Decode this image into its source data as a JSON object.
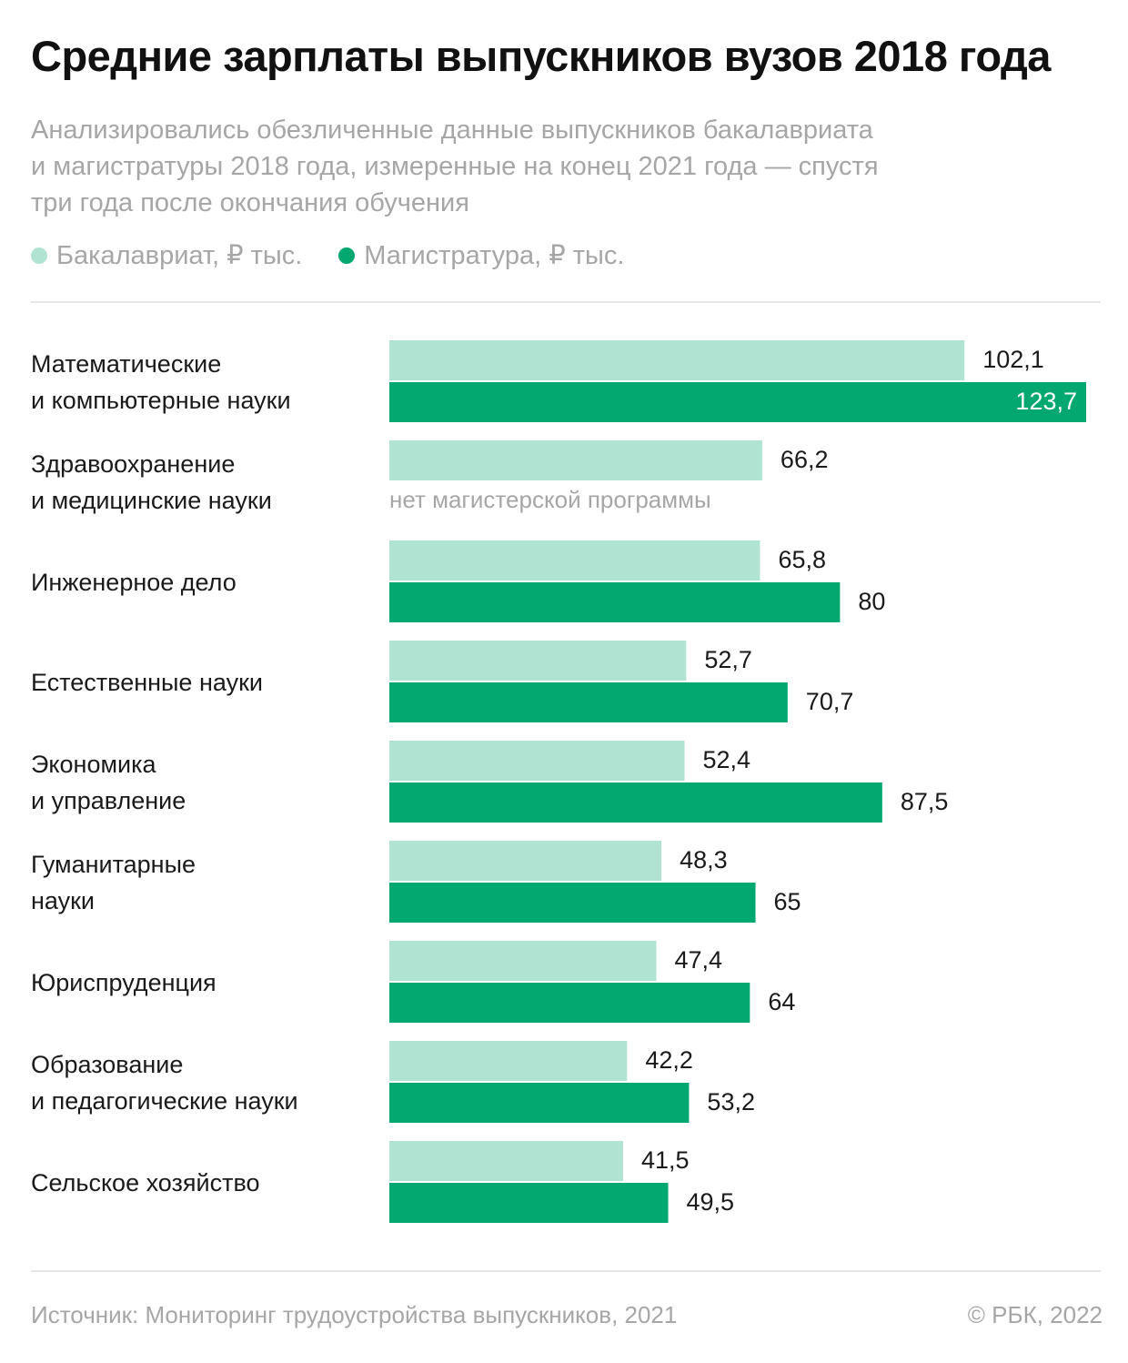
{
  "title": "Средние зарплаты выпускников вузов 2018 года",
  "subtitle_lines": [
    "Анализировались обезличенные данные выпускников бакалавриата",
    "и магистратуры 2018 года, измеренные на конец 2021 года — спустя",
    "три года после окончания обучения"
  ],
  "legend": [
    {
      "label": "Бакалавриат, ₽ тыс.",
      "color": "#b1e3d3"
    },
    {
      "label": "Магистратура, ₽ тыс.",
      "color": "#02a870"
    }
  ],
  "footer": {
    "source": "Источник: Мониторинг трудоустройства выпускников, 2021",
    "copyright": "© РБК, 2022"
  },
  "chart_data": {
    "type": "bar",
    "orientation": "horizontal",
    "title": "Средние зарплаты выпускников вузов 2018 года",
    "categories": [
      [
        "Математические",
        "и компьютерные науки"
      ],
      [
        "Здравоохранение",
        "и медицинские науки"
      ],
      [
        "Инженерное дело"
      ],
      [
        "Естественные науки"
      ],
      [
        "Экономика",
        "и управление"
      ],
      [
        "Гуманитарные",
        "науки"
      ],
      [
        "Юриспруденция"
      ],
      [
        "Образование",
        "и педагогические науки"
      ],
      [
        "Сельское хозяйство"
      ]
    ],
    "series": [
      {
        "name": "Бакалавриат, ₽ тыс.",
        "color": "#b1e3d3",
        "values": [
          102.1,
          66.2,
          65.8,
          52.7,
          52.4,
          48.3,
          47.4,
          42.2,
          41.5
        ],
        "labels": [
          "102,1",
          "66,2",
          "65,8",
          "52,7",
          "52,4",
          "48,3",
          "47,4",
          "42,2",
          "41,5"
        ]
      },
      {
        "name": "Магистратура, ₽ тыс.",
        "color": "#02a870",
        "values": [
          123.7,
          null,
          80,
          70.7,
          87.5,
          65,
          64,
          53.2,
          49.5
        ],
        "labels": [
          "123,7",
          "",
          "80",
          "70,7",
          "87,5",
          "65",
          "64",
          "53,2",
          "49,5"
        ]
      }
    ],
    "missing_note": "нет магистерской программы",
    "xlim": [
      0,
      123.7
    ],
    "grid": false,
    "legend_position": "top-left"
  }
}
